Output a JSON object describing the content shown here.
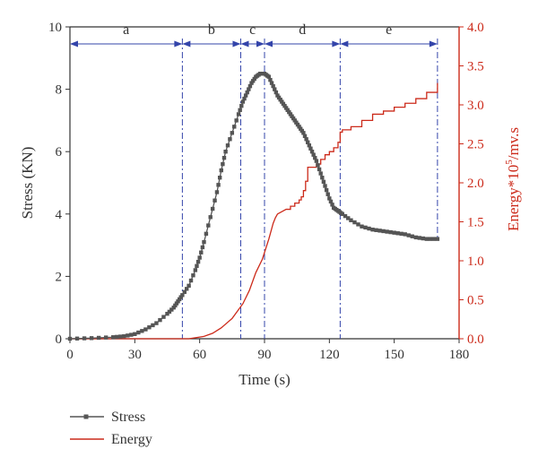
{
  "chart_data": {
    "type": "line",
    "xlabel": "Time (s)",
    "ylabel_left": "Stress (KN)",
    "ylabel_right_main": "Energy*10",
    "ylabel_right_sup": "5",
    "ylabel_right_tail": "/mv.s",
    "xlim": [
      0,
      180
    ],
    "ylim_left": [
      0,
      10
    ],
    "ylim_right": [
      0,
      4.0
    ],
    "x_ticks": [
      "0",
      "30",
      "60",
      "90",
      "120",
      "150",
      "180"
    ],
    "y_left_ticks": [
      "0",
      "2",
      "4",
      "6",
      "8",
      "10"
    ],
    "y_right_ticks": [
      "0.0",
      "0.5",
      "1.0",
      "1.5",
      "2.0",
      "2.5",
      "3.0",
      "3.5",
      "4.0"
    ],
    "grid": false,
    "legend_position": "bottom-left",
    "colors": {
      "stress": "#555555",
      "energy": "#cc2a1a",
      "stage": "#3344aa",
      "right_axis": "#cc2a1a"
    },
    "stages": [
      {
        "label": "a",
        "start": 0,
        "end": 52
      },
      {
        "label": "b",
        "start": 52,
        "end": 79
      },
      {
        "label": "c",
        "start": 79,
        "end": 90
      },
      {
        "label": "d",
        "start": 90,
        "end": 125
      },
      {
        "label": "e",
        "start": 125,
        "end": 170
      }
    ],
    "series": [
      {
        "name": "Stress",
        "axis": "left",
        "marker": "square",
        "x": [
          0,
          10,
          20,
          25,
          30,
          35,
          40,
          45,
          48,
          50,
          52,
          55,
          58,
          60,
          62,
          65,
          68,
          70,
          72,
          75,
          78,
          80,
          82,
          84,
          86,
          88,
          90,
          92,
          94,
          96,
          98,
          100,
          102,
          104,
          106,
          108,
          110,
          112,
          114,
          116,
          118,
          120,
          122,
          124,
          126,
          130,
          135,
          140,
          145,
          150,
          155,
          160,
          165,
          170
        ],
        "y": [
          0.0,
          0.02,
          0.05,
          0.08,
          0.15,
          0.3,
          0.5,
          0.8,
          1.0,
          1.2,
          1.4,
          1.7,
          2.2,
          2.6,
          3.1,
          3.9,
          4.7,
          5.4,
          6.0,
          6.6,
          7.2,
          7.6,
          7.9,
          8.2,
          8.4,
          8.5,
          8.5,
          8.4,
          8.1,
          7.8,
          7.6,
          7.4,
          7.2,
          7.0,
          6.8,
          6.6,
          6.3,
          6.0,
          5.7,
          5.3,
          4.9,
          4.5,
          4.2,
          4.1,
          4.0,
          3.8,
          3.6,
          3.5,
          3.45,
          3.4,
          3.35,
          3.25,
          3.2,
          3.2
        ]
      },
      {
        "name": "Energy",
        "axis": "right",
        "marker": "none",
        "x": [
          0,
          55,
          62,
          66,
          70,
          75,
          80,
          83,
          86,
          89,
          92,
          94,
          95,
          96,
          98,
          100,
          102,
          104,
          106,
          107,
          108,
          109,
          110,
          112,
          114,
          116,
          118,
          120,
          122,
          124,
          125,
          126,
          130,
          135,
          140,
          145,
          150,
          155,
          160,
          165,
          170
        ],
        "y": [
          0.0,
          0.0,
          0.03,
          0.07,
          0.14,
          0.26,
          0.45,
          0.62,
          0.85,
          1.02,
          1.28,
          1.48,
          1.55,
          1.6,
          1.63,
          1.66,
          1.7,
          1.74,
          1.78,
          1.82,
          1.9,
          2.02,
          2.2,
          2.2,
          2.24,
          2.3,
          2.36,
          2.4,
          2.45,
          2.52,
          2.65,
          2.68,
          2.72,
          2.8,
          2.88,
          2.92,
          2.97,
          3.02,
          3.08,
          3.16,
          3.28
        ]
      }
    ]
  }
}
